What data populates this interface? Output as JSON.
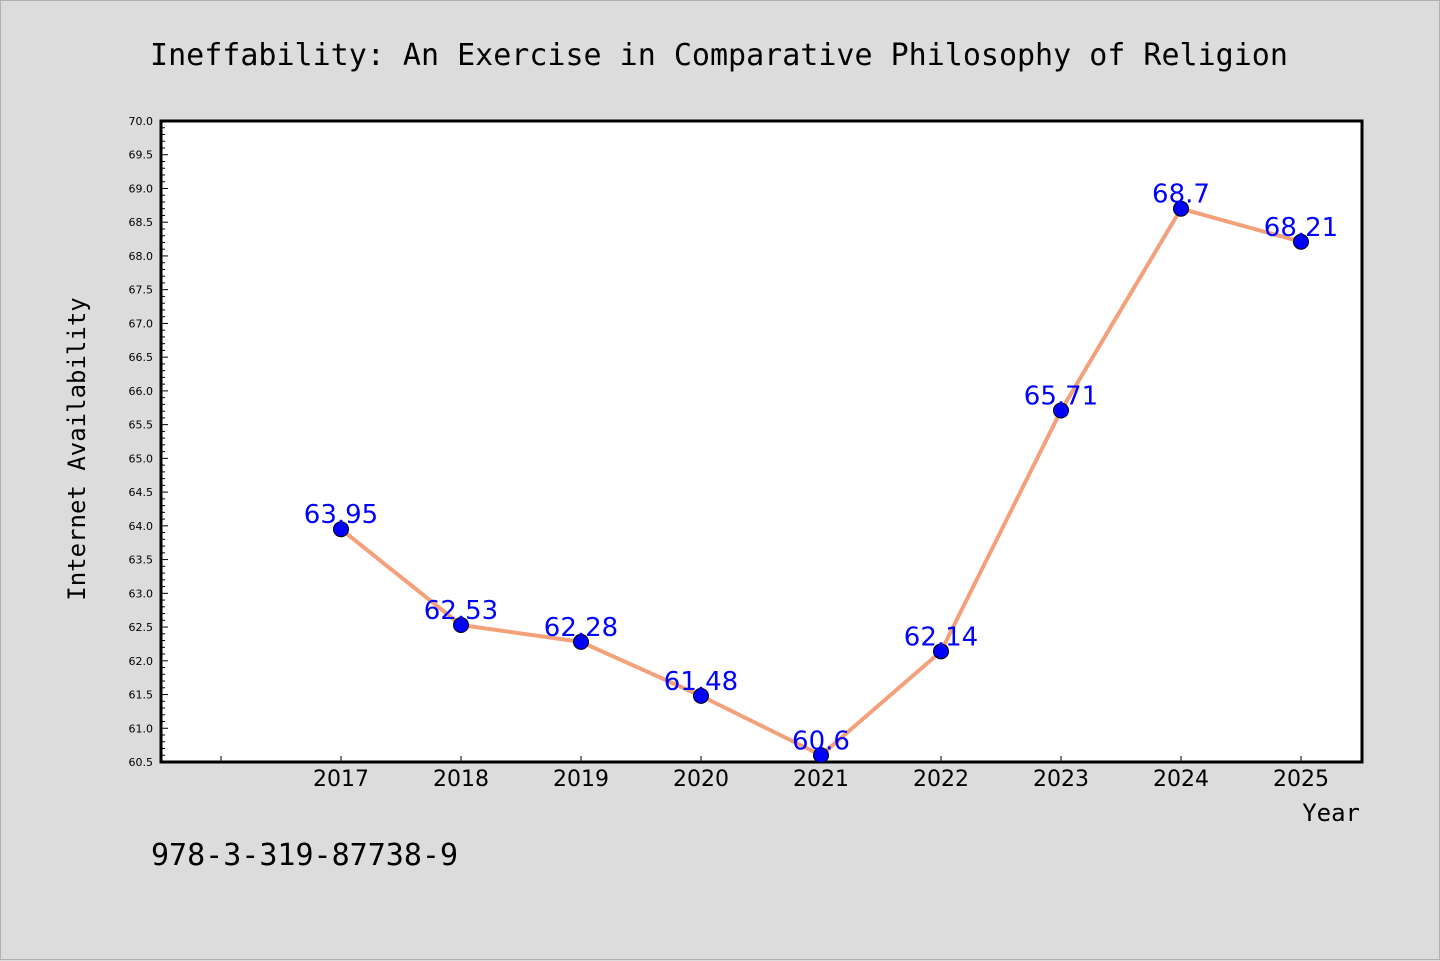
{
  "chart_data": {
    "type": "line",
    "title": "Ineffability: An Exercise in Comparative Philosophy of Religion",
    "xlabel": "Year",
    "ylabel": "Internet Availability",
    "categories": [
      "2017",
      "2018",
      "2019",
      "2020",
      "2021",
      "2022",
      "2023",
      "2024",
      "2025"
    ],
    "values": [
      63.95,
      62.53,
      62.28,
      61.48,
      60.6,
      62.14,
      65.71,
      68.7,
      68.21
    ],
    "data_labels": [
      "63.95",
      "62.53",
      "62.28",
      "61.48",
      "60.6",
      "62.14",
      "65.71",
      "68.7",
      "68.21"
    ],
    "ylim": [
      60.5,
      70.0
    ],
    "yticks": [
      "60.5",
      "61.0",
      "61.5",
      "62.0",
      "62.5",
      "63.0",
      "63.5",
      "64.0",
      "64.5",
      "65.0",
      "65.5",
      "66.0",
      "66.5",
      "67.0",
      "67.5",
      "68.0",
      "68.5",
      "69.0",
      "69.5",
      "70.0"
    ],
    "grid": false,
    "legend": "none",
    "colors": {
      "line": "#f4a07a",
      "marker": "#0000ff",
      "data_label": "#0000ff",
      "background": "#dcdcdc",
      "plot_background": "#ffffff"
    }
  },
  "footer": {
    "isbn": "978-3-319-87738-9"
  }
}
